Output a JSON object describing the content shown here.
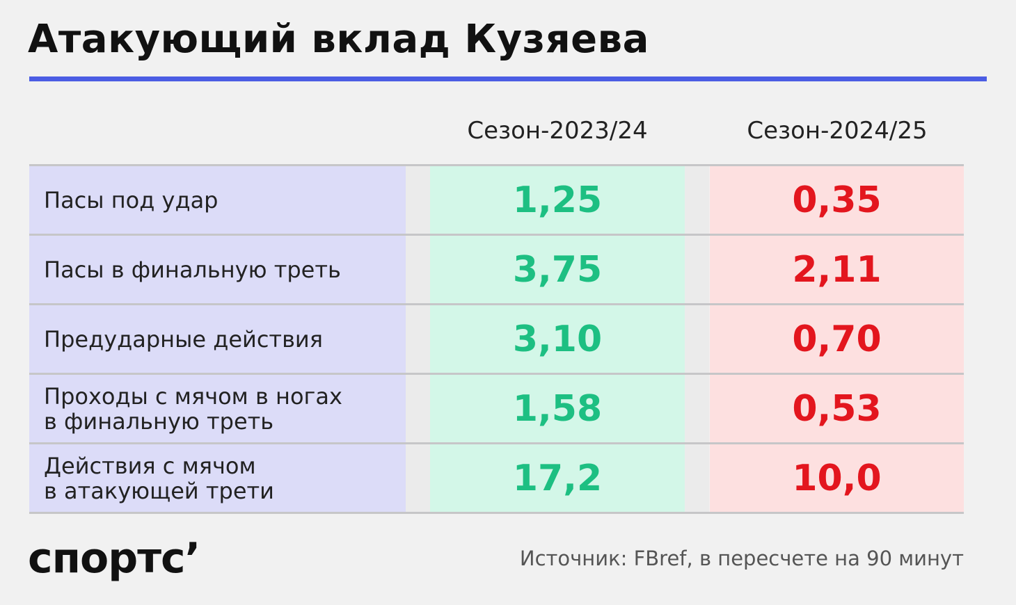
{
  "header": {
    "title": "Атакующий вклад Кузяева"
  },
  "table": {
    "columns": [
      "Сезон-2023/24",
      "Сезон-2024/25"
    ],
    "rows": [
      [
        "Пасы под удар",
        "1,25",
        "0,35"
      ],
      [
        "Пасы в финальную треть",
        "3,75",
        "2,11"
      ],
      [
        "Предударные действия",
        "3,10",
        "0,70"
      ],
      [
        "Проходы с мячом в ногах\nв финальную треть",
        "1,58",
        "0,53"
      ],
      [
        "Действия с мячом\nв атакующей трети",
        "17,2",
        "10,0"
      ]
    ]
  },
  "footer": {
    "logo": "спортс’",
    "source": "Источник: FBref, в пересчете на 90 минут"
  }
}
